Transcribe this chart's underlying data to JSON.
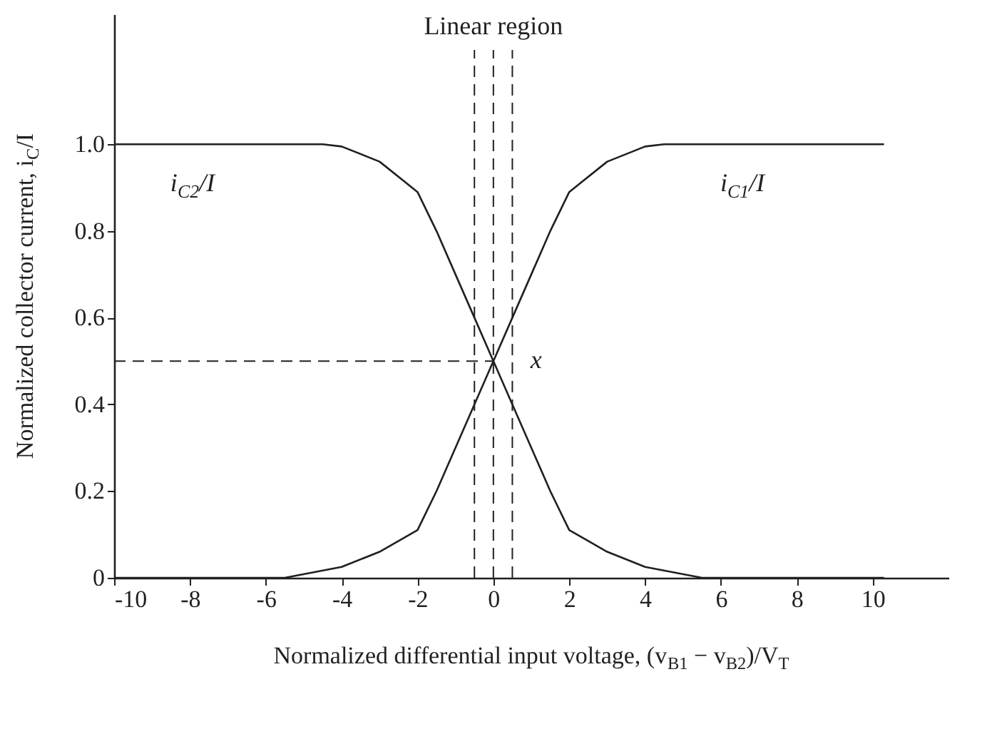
{
  "chart_data": {
    "type": "line",
    "xlabel": "Normalized differential input voltage, (v$_{B1}$ − v$_{B2}$)/V$_{T}$",
    "ylabel": "Normalized collector current, i$_{C}$/I",
    "x": [
      -10,
      -5.5,
      -4,
      -3,
      -2,
      -1.5,
      -1,
      -0.5,
      0,
      0.5,
      1,
      1.5,
      2,
      3,
      4,
      4.5,
      10.3
    ],
    "series": [
      {
        "name": "i$_{C1}$/I",
        "color": "#231f20",
        "values": [
          0,
          0,
          0.025,
          0.06,
          0.11,
          0.2,
          0.3,
          0.4,
          0.5,
          0.6,
          0.7,
          0.8,
          0.89,
          0.96,
          0.995,
          1,
          1
        ]
      },
      {
        "name": "i$_{C2}$/I",
        "color": "#231f20",
        "x": [
          -10,
          -5,
          -4.5,
          -4,
          -3,
          -2,
          -1.5,
          -1,
          -0.5,
          0,
          0.5,
          1,
          1.5,
          2,
          3,
          4,
          5.5,
          10.3
        ],
        "values": [
          1,
          1,
          1,
          0.995,
          0.96,
          0.89,
          0.8,
          0.7,
          0.6,
          0.5,
          0.4,
          0.3,
          0.2,
          0.11,
          0.06,
          0.025,
          0,
          0
        ]
      }
    ],
    "xlim": [
      -10,
      12
    ],
    "ylim": [
      0,
      1.3
    ],
    "xticks": [
      -10,
      -8,
      -6,
      -4,
      -2,
      0,
      2,
      4,
      6,
      8,
      10
    ],
    "yticks": [
      {
        "value": 0,
        "label": "0"
      },
      0.2,
      0.4,
      0.6,
      0.8,
      {
        "value": 1,
        "label": "1.0"
      }
    ],
    "ref_lines": [
      {
        "axis": "x",
        "value": -0.5,
        "line_style": "dashed"
      },
      {
        "axis": "x",
        "value": 0,
        "line_style": "dashed"
      },
      {
        "axis": "x",
        "value": 0.5,
        "line_style": "dashed"
      },
      {
        "axis": "y",
        "value": 0.5,
        "line_style": "dashed"
      }
    ],
    "annotations": [
      "Linear region",
      {
        "text": "x",
        "x": 0,
        "y": 0.5
      }
    ],
    "grid": false,
    "marker": "none",
    "line_style": "solid"
  }
}
